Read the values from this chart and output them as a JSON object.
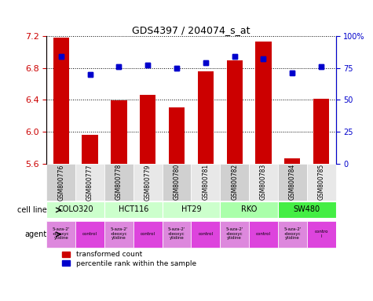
{
  "title": "GDS4397 / 204074_s_at",
  "samples": [
    "GSM800776",
    "GSM800777",
    "GSM800778",
    "GSM800779",
    "GSM800780",
    "GSM800781",
    "GSM800782",
    "GSM800783",
    "GSM800784",
    "GSM800785"
  ],
  "bar_values": [
    7.18,
    5.96,
    6.39,
    6.46,
    6.31,
    6.76,
    6.9,
    7.13,
    5.67,
    6.41
  ],
  "dot_values": [
    84,
    70,
    76,
    77,
    75,
    79,
    84,
    82,
    71,
    76
  ],
  "ymin": 5.6,
  "ymax": 7.2,
  "y_ticks": [
    5.6,
    6.0,
    6.4,
    6.8,
    7.2
  ],
  "y2_ticks": [
    0,
    25,
    50,
    75,
    100
  ],
  "bar_color": "#cc0000",
  "dot_color": "#0000cc",
  "cell_lines": [
    {
      "label": "COLO320",
      "start": 0,
      "end": 2,
      "color": "#ccffcc"
    },
    {
      "label": "HCT116",
      "start": 2,
      "end": 4,
      "color": "#ccffcc"
    },
    {
      "label": "HT29",
      "start": 4,
      "end": 6,
      "color": "#ccffcc"
    },
    {
      "label": "RKO",
      "start": 6,
      "end": 8,
      "color": "#aaffaa"
    },
    {
      "label": "SW480",
      "start": 8,
      "end": 10,
      "color": "#44ee44"
    }
  ],
  "agents": [
    {
      "label": "5-aza-2'\n-deoxyc\nytidine",
      "idx": 0,
      "color": "#ee66ee"
    },
    {
      "label": "control",
      "idx": 1,
      "color": "#ee66ee"
    },
    {
      "label": "5-aza-2'\n-deoxyc\nytidine",
      "idx": 2,
      "color": "#ee66ee"
    },
    {
      "label": "control",
      "idx": 3,
      "color": "#ee66ee"
    },
    {
      "label": "5-aza-2'\n-deoxyc\nytidine",
      "idx": 4,
      "color": "#ee66ee"
    },
    {
      "label": "control",
      "idx": 5,
      "color": "#ee66ee"
    },
    {
      "label": "5-aza-2'\n-deoxyc\nytidine",
      "idx": 6,
      "color": "#ee66ee"
    },
    {
      "label": "control",
      "idx": 7,
      "color": "#ee66ee"
    },
    {
      "label": "5-aza-2'\n-deoxyc\nytidine",
      "idx": 8,
      "color": "#ee66ee"
    },
    {
      "label": "contro\nl",
      "idx": 9,
      "color": "#dd44dd"
    }
  ],
  "legend_bar_label": "transformed count",
  "legend_dot_label": "percentile rank within the sample",
  "cell_line_label": "cell line",
  "agent_label": "agent",
  "ylabel_left_color": "#cc0000",
  "ylabel_right_color": "#0000cc"
}
